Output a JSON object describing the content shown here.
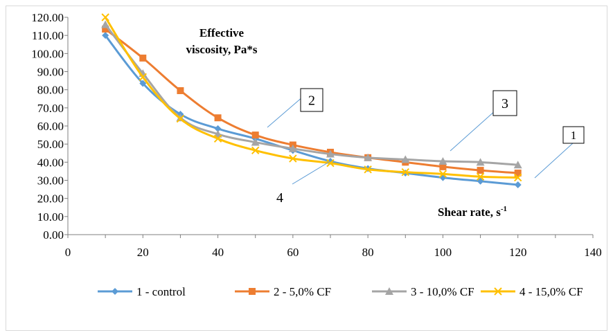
{
  "chart_data": {
    "type": "line",
    "title": "Effective viscosity, Pa*s",
    "title_lines": [
      "Effective",
      "viscosity, Pa*s"
    ],
    "xlabel": "Shear rate, s",
    "xlabel_sup": "-1",
    "ylabel": "",
    "xlim": [
      0,
      140
    ],
    "ylim": [
      0,
      120
    ],
    "x_ticks": [
      "0",
      "20",
      "40",
      "60",
      "80",
      "100",
      "120",
      "140"
    ],
    "y_ticks": [
      "0.00",
      "10.00",
      "20.00",
      "30.00",
      "40.00",
      "50.00",
      "60.00",
      "70.00",
      "80.00",
      "90.00",
      "100.00",
      "110.00",
      "120.00"
    ],
    "grid": false,
    "legend_position": "bottom",
    "x": [
      10,
      20,
      30,
      40,
      50,
      60,
      70,
      80,
      90,
      100,
      110,
      120
    ],
    "series": [
      {
        "name": "1 - control",
        "color": "#5b9bd5",
        "marker": "diamond",
        "values": [
          110.0,
          83.5,
          66.5,
          58.5,
          53.0,
          46.5,
          40.5,
          36.5,
          34.0,
          31.5,
          29.5,
          27.5
        ]
      },
      {
        "name": "2 - 5,0% CF",
        "color": "#ed7d31",
        "marker": "square",
        "values": [
          113.5,
          97.5,
          79.5,
          64.5,
          55.0,
          49.5,
          45.5,
          42.5,
          40.0,
          37.5,
          35.5,
          34.0
        ]
      },
      {
        "name": "3 - 10,0% CF",
        "color": "#a5a5a5",
        "marker": "triangle",
        "values": [
          116.0,
          89.0,
          64.5,
          55.5,
          51.0,
          47.5,
          44.5,
          42.5,
          41.5,
          40.5,
          40.0,
          38.5
        ]
      },
      {
        "name": "4 - 15,0% CF",
        "color": "#ffc000",
        "marker": "x",
        "values": [
          120.0,
          87.0,
          64.0,
          53.0,
          46.5,
          42.0,
          39.5,
          36.0,
          34.5,
          33.5,
          32.0,
          31.5
        ]
      }
    ],
    "annotations": [
      {
        "label": "1",
        "series": 0
      },
      {
        "label": "2",
        "series": 1
      },
      {
        "label": "3",
        "series": 2
      },
      {
        "label": "4",
        "series": 3
      }
    ]
  }
}
